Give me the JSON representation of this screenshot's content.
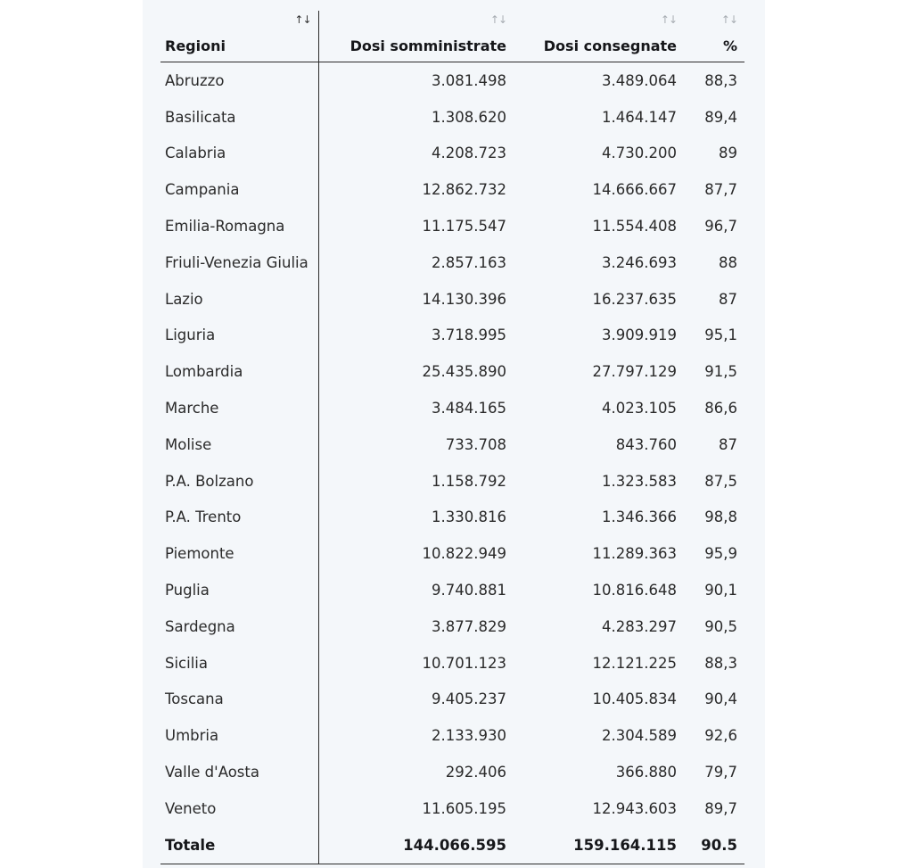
{
  "table": {
    "headers": [
      {
        "label": "Regioni",
        "sort_icon": "↑↓"
      },
      {
        "label": "Dosi somministrate",
        "sort_icon": "↑↓"
      },
      {
        "label": "Dosi consegnate",
        "sort_icon": "↑↓"
      },
      {
        "label": "%",
        "sort_icon": "↑↓"
      }
    ],
    "rows": [
      {
        "region": "Abruzzo",
        "administered": "3.081.498",
        "delivered": "3.489.064",
        "pct": "88,3"
      },
      {
        "region": "Basilicata",
        "administered": "1.308.620",
        "delivered": "1.464.147",
        "pct": "89,4"
      },
      {
        "region": "Calabria",
        "administered": "4.208.723",
        "delivered": "4.730.200",
        "pct": "89"
      },
      {
        "region": "Campania",
        "administered": "12.862.732",
        "delivered": "14.666.667",
        "pct": "87,7"
      },
      {
        "region": "Emilia-Romagna",
        "administered": "11.175.547",
        "delivered": "11.554.408",
        "pct": "96,7"
      },
      {
        "region": "Friuli-Venezia Giulia",
        "administered": "2.857.163",
        "delivered": "3.246.693",
        "pct": "88"
      },
      {
        "region": "Lazio",
        "administered": "14.130.396",
        "delivered": "16.237.635",
        "pct": "87"
      },
      {
        "region": "Liguria",
        "administered": "3.718.995",
        "delivered": "3.909.919",
        "pct": "95,1"
      },
      {
        "region": "Lombardia",
        "administered": "25.435.890",
        "delivered": "27.797.129",
        "pct": "91,5"
      },
      {
        "region": "Marche",
        "administered": "3.484.165",
        "delivered": "4.023.105",
        "pct": "86,6"
      },
      {
        "region": "Molise",
        "administered": "733.708",
        "delivered": "843.760",
        "pct": "87"
      },
      {
        "region": "P.A. Bolzano",
        "administered": "1.158.792",
        "delivered": "1.323.583",
        "pct": "87,5"
      },
      {
        "region": "P.A. Trento",
        "administered": "1.330.816",
        "delivered": "1.346.366",
        "pct": "98,8"
      },
      {
        "region": "Piemonte",
        "administered": "10.822.949",
        "delivered": "11.289.363",
        "pct": "95,9"
      },
      {
        "region": "Puglia",
        "administered": "9.740.881",
        "delivered": "10.816.648",
        "pct": "90,1"
      },
      {
        "region": "Sardegna",
        "administered": "3.877.829",
        "delivered": "4.283.297",
        "pct": "90,5"
      },
      {
        "region": "Sicilia",
        "administered": "10.701.123",
        "delivered": "12.121.225",
        "pct": "88,3"
      },
      {
        "region": "Toscana",
        "administered": "9.405.237",
        "delivered": "10.405.834",
        "pct": "90,4"
      },
      {
        "region": "Umbria",
        "administered": "2.133.930",
        "delivered": "2.304.589",
        "pct": "92,6"
      },
      {
        "region": "Valle d'Aosta",
        "administered": "292.406",
        "delivered": "366.880",
        "pct": "79,7"
      },
      {
        "region": "Veneto",
        "administered": "11.605.195",
        "delivered": "12.943.603",
        "pct": "89,7"
      }
    ],
    "total": {
      "label": "Totale",
      "administered": "144.066.595",
      "delivered": "159.164.115",
      "pct": "90.5"
    }
  }
}
